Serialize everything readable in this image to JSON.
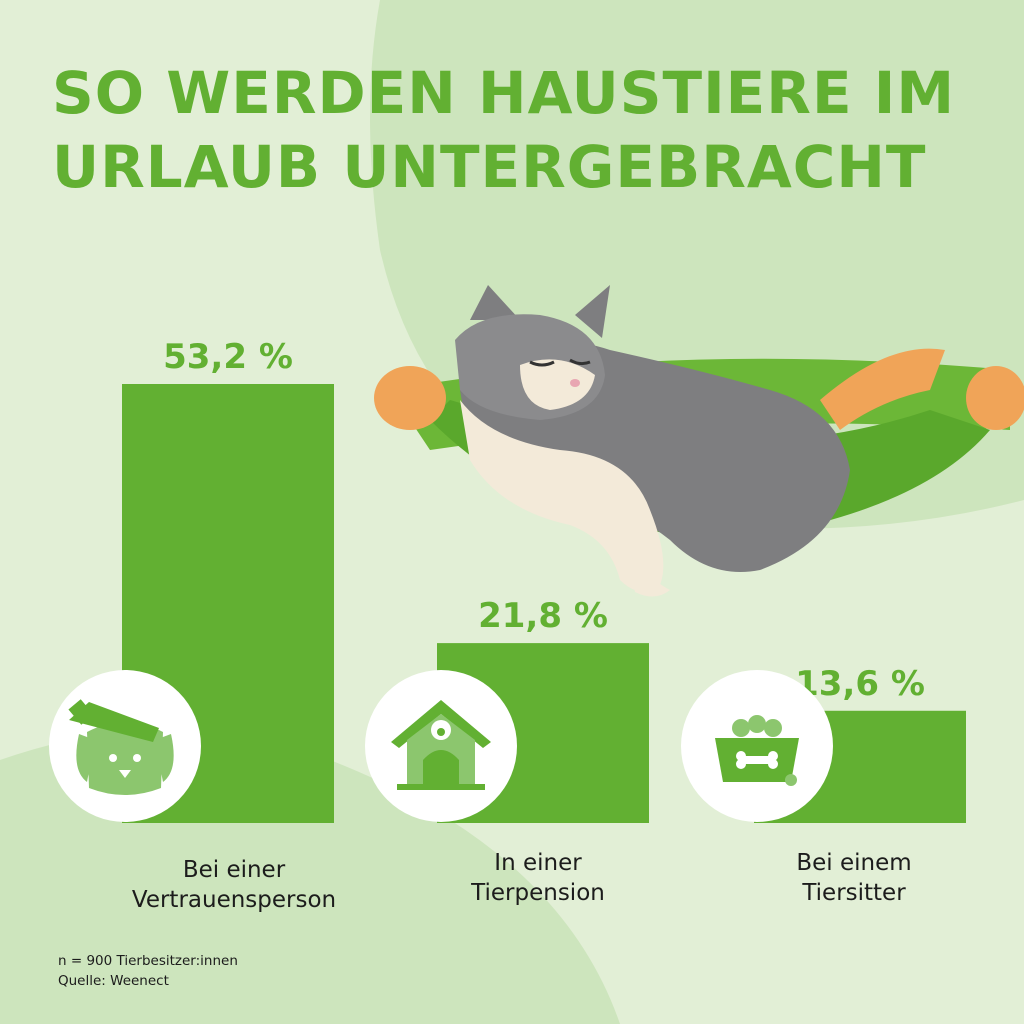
{
  "title": {
    "line1": "SO WERDEN HAUSTIERE IM",
    "line2": "URLAUB UNTERGEBRACHT"
  },
  "colors": {
    "bar": "#62b032",
    "title": "#62b032",
    "background": "#e2efd6",
    "blob": "#cde5bd",
    "icon_fill": "#ffffff",
    "icon_green": "#8cc66e"
  },
  "chart_data": {
    "type": "bar",
    "categories": [
      "Bei einer\nVertrauensperson",
      "In einer\nTierpension",
      "Bei einem\nTiersitter"
    ],
    "values": [
      53.2,
      21.8,
      13.6
    ],
    "value_labels": [
      "53,2 %",
      "21,8 %",
      "13,6 %"
    ],
    "unit": "%",
    "ylim": [
      0,
      53.2
    ],
    "grid": false,
    "legend": "none"
  },
  "icons": [
    "dog-pet-hand-icon",
    "dog-house-icon",
    "pet-food-bowl-icon"
  ],
  "footnote": {
    "sample": "n = 900 Tierbesitzer:innen",
    "source": "Quelle: Weenect"
  }
}
